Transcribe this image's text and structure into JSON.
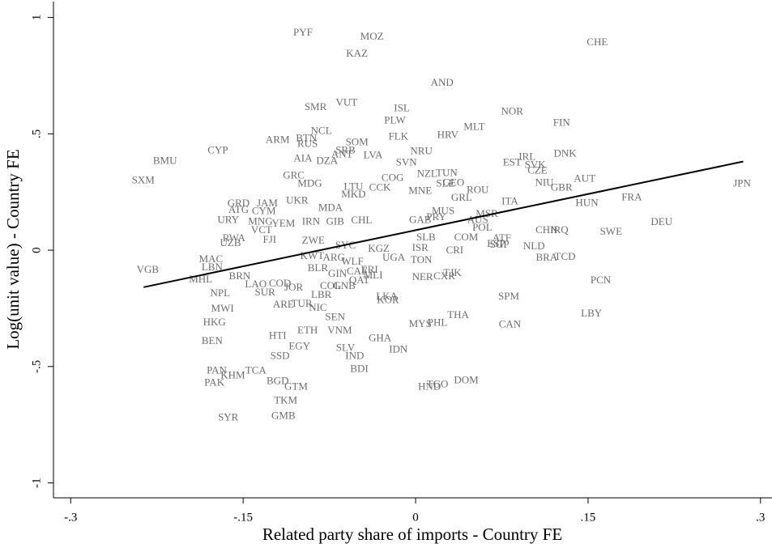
{
  "chart_data": {
    "type": "scatter",
    "x_label": "Related party share of imports - Country FE",
    "y_label": "Log(unit value) - Country FE",
    "xlim": [
      -0.315,
      0.31
    ],
    "ylim": [
      -1.064,
      1.068
    ],
    "xticks": [
      {
        "value": -0.3,
        "label": "-.3"
      },
      {
        "value": -0.15,
        "label": "-.15"
      },
      0,
      {
        "value": 0.15,
        "label": ".15"
      },
      {
        "value": 0.3,
        "label": ".3"
      }
    ],
    "yticks": [
      -1,
      {
        "value": -0.5,
        "label": "-.5"
      },
      0,
      {
        "value": 0.5,
        "label": ".5"
      },
      1
    ],
    "grid": false,
    "series": [
      {
        "color": "#6e6e6e",
        "labels": [
          "PYF",
          "MOZ",
          "KAZ",
          "CHE",
          "AND",
          "SMR",
          "VUT",
          "ISL",
          "NOR",
          "PLW",
          "FIN",
          "MLT",
          "HRV",
          "NCL",
          "FLK",
          "ARM",
          "BTN",
          "RUS",
          "SOM",
          "CYP",
          "SRB",
          "NRU",
          "DNK",
          "IRL",
          "ANT",
          "LVA",
          "BMU",
          "AIA",
          "DZA",
          "EST",
          "SVK",
          "SVN",
          "CZE",
          "NZL",
          "TUN",
          "GRC",
          "AUT",
          "MDG",
          "SXM",
          "JPN",
          "COG",
          "SLE",
          "GEO",
          "NIU",
          "GBR",
          "LTU",
          "CCK",
          "ROU",
          "MNE",
          "MKD",
          "FRA",
          "UKR",
          "GRL",
          "ITA",
          "HUN",
          "GRD",
          "JAM",
          "MDA",
          "ATG",
          "CYM",
          "MUS",
          "DEU",
          "MSR",
          "IRN",
          "URY",
          "MNG",
          "YEM",
          "GIB",
          "CHL",
          "GAB",
          "PRY",
          "AUS",
          "POL",
          "VCT",
          "CHN",
          "IRQ",
          "SWE",
          "RWA",
          "FJI",
          "ZWE",
          "SLB",
          "COM",
          "ATF",
          "UZB",
          "ESP",
          "SGP",
          "NLD",
          "SYC",
          "KGZ",
          "ISR",
          "CRI",
          "MAC",
          "LBN",
          "KWT",
          "ARG",
          "UGA",
          "TON",
          "BRA",
          "TCD",
          "VGB",
          "BLR",
          "WLF",
          "ERI",
          "GIN",
          "CAF",
          "TJK",
          "MHL",
          "BRN",
          "NER",
          "CXR",
          "PCN",
          "LAO",
          "COD",
          "NPL",
          "SUR",
          "LBR",
          "JOR",
          "COL",
          "GNB",
          "MLI",
          "QAT",
          "LKA",
          "KOR",
          "SPM",
          "ARE",
          "TUR",
          "NIC",
          "MWI",
          "SEN",
          "LBY",
          "THA",
          "MYS",
          "PHL",
          "HKG",
          "CAN",
          "ETH",
          "VNM",
          "HTI",
          "GHA",
          "BEN",
          "EGY",
          "SLV",
          "IDN",
          "IND",
          "SSD",
          "PAN",
          "TCA",
          "KHM",
          "BDI",
          "BGD",
          "PAK",
          "GTM",
          "HND",
          "TGO",
          "DOM",
          "TKM",
          "SYR",
          "GMB"
        ],
        "x": [
          -0.098,
          -0.038,
          -0.051,
          0.158,
          0.023,
          -0.087,
          -0.06,
          -0.012,
          0.084,
          -0.018,
          0.127,
          0.051,
          0.028,
          -0.082,
          -0.015,
          -0.12,
          -0.095,
          -0.094,
          -0.051,
          -0.172,
          -0.061,
          0.005,
          0.13,
          0.097,
          -0.064,
          -0.037,
          -0.218,
          -0.098,
          -0.077,
          0.084,
          0.104,
          -0.008,
          0.106,
          0.01,
          0.027,
          -0.106,
          0.147,
          -0.092,
          -0.237,
          0.284,
          -0.02,
          0.026,
          0.033,
          0.112,
          0.127,
          -0.054,
          -0.031,
          0.054,
          0.004,
          -0.054,
          0.188,
          -0.103,
          0.04,
          0.082,
          0.149,
          -0.154,
          -0.129,
          -0.074,
          -0.154,
          -0.132,
          0.024,
          0.214,
          0.062,
          -0.091,
          -0.163,
          -0.135,
          -0.115,
          -0.07,
          -0.047,
          0.004,
          0.018,
          0.054,
          0.058,
          -0.134,
          0.114,
          0.125,
          0.17,
          -0.158,
          -0.127,
          -0.089,
          0.009,
          0.044,
          0.075,
          -0.161,
          0.07,
          0.073,
          0.103,
          -0.061,
          -0.032,
          0.004,
          0.034,
          -0.178,
          -0.177,
          -0.09,
          -0.071,
          -0.019,
          0.005,
          0.114,
          0.13,
          -0.233,
          -0.085,
          -0.055,
          -0.04,
          -0.068,
          -0.051,
          0.032,
          -0.187,
          -0.153,
          0.006,
          0.025,
          0.161,
          -0.139,
          -0.118,
          -0.17,
          -0.131,
          -0.082,
          -0.106,
          -0.074,
          -0.062,
          -0.037,
          -0.049,
          -0.025,
          -0.024,
          0.081,
          -0.115,
          -0.099,
          -0.085,
          -0.168,
          -0.07,
          0.153,
          0.037,
          0.004,
          0.019,
          -0.175,
          0.082,
          -0.094,
          -0.066,
          -0.12,
          -0.031,
          -0.177,
          -0.101,
          -0.061,
          -0.015,
          -0.053,
          -0.118,
          -0.173,
          -0.139,
          -0.159,
          -0.049,
          -0.12,
          -0.175,
          -0.104,
          0.012,
          0.019,
          0.044,
          -0.113,
          -0.163,
          -0.115
        ],
        "values": [
          0.932,
          0.915,
          0.842,
          0.891,
          0.717,
          0.613,
          0.631,
          0.607,
          0.593,
          0.555,
          0.544,
          0.527,
          0.492,
          0.51,
          0.485,
          0.471,
          0.478,
          0.454,
          0.461,
          0.426,
          0.426,
          0.423,
          0.412,
          0.399,
          0.409,
          0.406,
          0.381,
          0.392,
          0.381,
          0.374,
          0.364,
          0.374,
          0.34,
          0.326,
          0.329,
          0.319,
          0.305,
          0.284,
          0.298,
          0.284,
          0.308,
          0.284,
          0.288,
          0.288,
          0.267,
          0.27,
          0.267,
          0.256,
          0.253,
          0.236,
          0.225,
          0.211,
          0.222,
          0.208,
          0.201,
          0.198,
          0.198,
          0.18,
          0.17,
          0.166,
          0.166,
          0.118,
          0.153,
          0.121,
          0.128,
          0.121,
          0.111,
          0.121,
          0.125,
          0.128,
          0.139,
          0.128,
          0.094,
          0.083,
          0.083,
          0.083,
          0.076,
          0.049,
          0.042,
          0.038,
          0.052,
          0.052,
          0.049,
          0.028,
          0.024,
          0.021,
          0.014,
          0.017,
          0.003,
          0.007,
          -0.003,
          -0.042,
          -0.076,
          -0.028,
          -0.035,
          -0.035,
          -0.045,
          -0.035,
          -0.031,
          -0.087,
          -0.08,
          -0.052,
          -0.087,
          -0.104,
          -0.094,
          -0.101,
          -0.128,
          -0.114,
          -0.118,
          -0.114,
          -0.132,
          -0.149,
          -0.146,
          -0.187,
          -0.184,
          -0.194,
          -0.163,
          -0.156,
          -0.156,
          -0.111,
          -0.132,
          -0.201,
          -0.218,
          -0.201,
          -0.236,
          -0.232,
          -0.25,
          -0.253,
          -0.291,
          -0.274,
          -0.281,
          -0.319,
          -0.315,
          -0.312,
          -0.322,
          -0.347,
          -0.347,
          -0.371,
          -0.381,
          -0.392,
          -0.416,
          -0.423,
          -0.43,
          -0.458,
          -0.458,
          -0.52,
          -0.52,
          -0.541,
          -0.513,
          -0.565,
          -0.572,
          -0.589,
          -0.589,
          -0.579,
          -0.562,
          -0.648,
          -0.721,
          -0.714
        ]
      }
    ],
    "fit_line": {
      "color": "#000000",
      "x": [
        -0.2366,
        0.285
      ],
      "values": [
        -0.159,
        0.381
      ]
    }
  }
}
